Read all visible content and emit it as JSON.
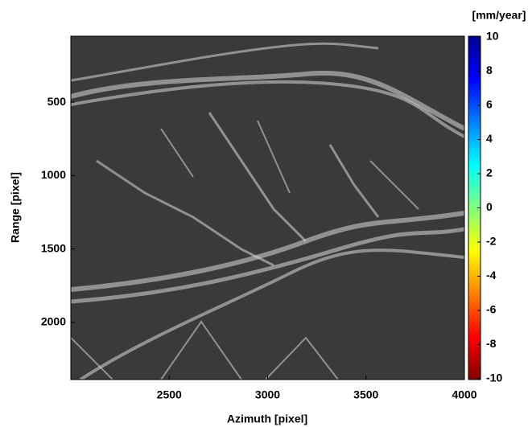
{
  "chart_data": {
    "type": "image",
    "xlabel": "Azimuth [pixel]",
    "ylabel": "Range [pixel]",
    "xlim": [
      2000,
      4000
    ],
    "xticks": [
      2500,
      3000,
      3500,
      4000
    ],
    "ylim": [
      50,
      2390
    ],
    "y_inverted": true,
    "yticks": [
      500,
      1000,
      1500,
      2000
    ],
    "colorbar": {
      "label": "[mm/year]",
      "colormap": "jet",
      "clim": [
        -10,
        10
      ],
      "ticks": [
        -10,
        -8,
        -6,
        -4,
        -2,
        0,
        2,
        4,
        6,
        8,
        10
      ]
    }
  }
}
